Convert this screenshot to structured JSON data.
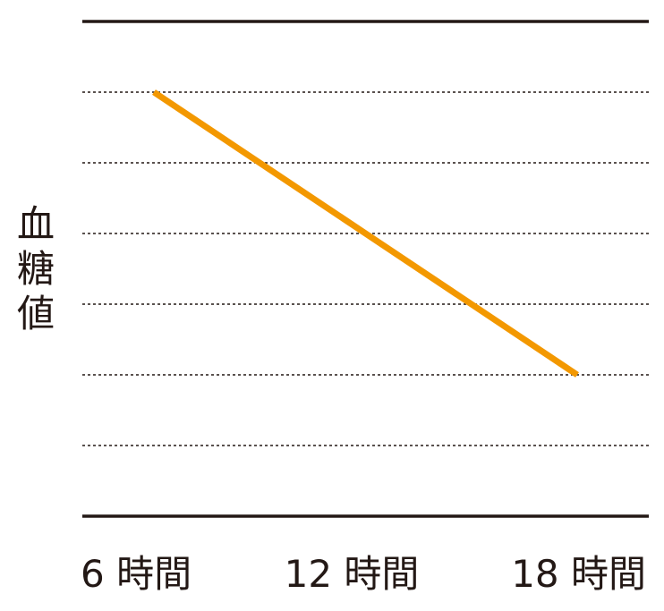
{
  "chart_data": {
    "type": "line",
    "title": "",
    "xlabel": "",
    "ylabel": "血糖値",
    "categories": [
      "6 時間",
      "12 時間",
      "18 時間"
    ],
    "series": [
      {
        "x": [
          "6 時間",
          "18 時間"
        ],
        "values": [
          6,
          2
        ]
      }
    ],
    "ylim": [
      0,
      7
    ],
    "y_ticks_labeled": false,
    "grid": "horizontal-dotted",
    "line_color": "#f39800",
    "axis_color": "#231815",
    "grid_color": "#231815"
  }
}
